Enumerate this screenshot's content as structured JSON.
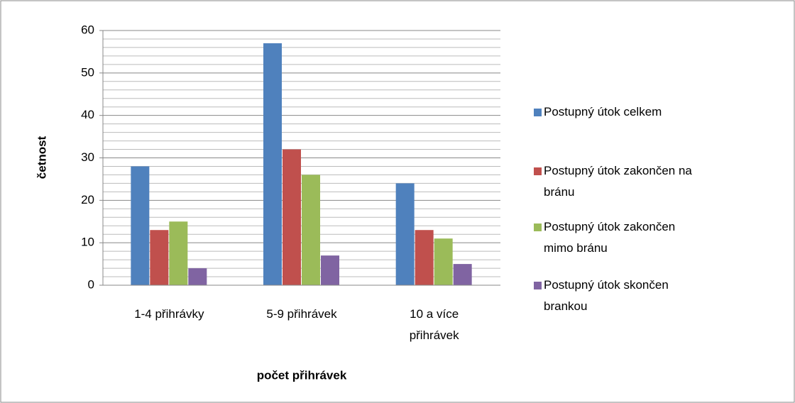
{
  "chart_data": {
    "type": "bar",
    "categories": [
      "1-4 přihrávky",
      "5-9 přihrávek",
      "10 a více přihrávek"
    ],
    "series": [
      {
        "name": "Postupný útok celkem",
        "color": "#4f81bd",
        "values": [
          28,
          57,
          24
        ]
      },
      {
        "name": "Postupný útok zakončen na bránu",
        "color": "#c0504d",
        "values": [
          13,
          32,
          13
        ]
      },
      {
        "name": "Postupný útok zakončen mimo bránu",
        "color": "#9bbb59",
        "values": [
          15,
          26,
          11
        ]
      },
      {
        "name": "Postupný útok skončen brankou",
        "color": "#8064a2",
        "values": [
          4,
          7,
          5
        ]
      }
    ],
    "x_label": "počet přihrávek",
    "y_label": "četnost",
    "ylim": [
      0,
      60
    ],
    "yticks": [
      0,
      10,
      20,
      30,
      40,
      50,
      60
    ],
    "minor_yticks": [
      2,
      4,
      6,
      8,
      12,
      14,
      16,
      18,
      22,
      24,
      26,
      28,
      32,
      34,
      36,
      38,
      42,
      44,
      46,
      48,
      52,
      54,
      56,
      58
    ],
    "grid": true,
    "legend": "right"
  }
}
